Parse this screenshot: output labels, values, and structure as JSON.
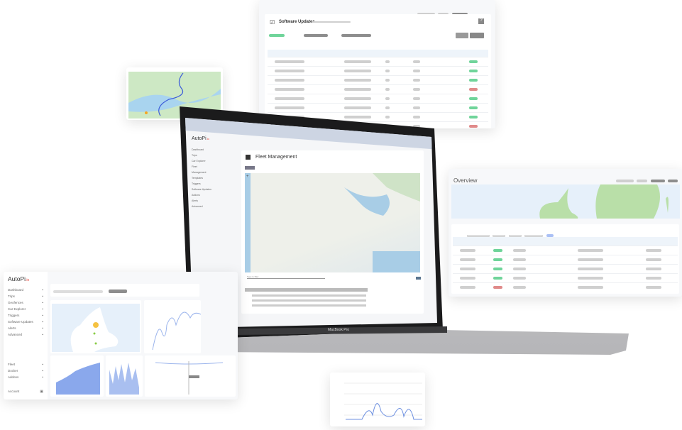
{
  "software_updates": {
    "title": "Software Updates",
    "icon": "checkbox-icon",
    "help_label": "?",
    "result_colors": [
      "#6fd49a",
      "#6fd49a",
      "#6fd49a",
      "#e08a8a",
      "#6fd49a",
      "#6fd49a",
      "#6fd49a",
      "#e08a8a"
    ]
  },
  "laptop": {
    "model_label": "MacBook Pro",
    "screen": {
      "logo": "AutoPi",
      "logo_suffix": ".io",
      "page_title": "Fleet Management",
      "search_placeholder": "Type to filter...",
      "sidebar": [
        {
          "label": "Dashboard"
        },
        {
          "label": "Trips"
        },
        {
          "label": "Car Explorer"
        },
        {
          "label": "Fleet"
        },
        {
          "label": "Management"
        },
        {
          "label": "Templates"
        },
        {
          "label": "Triggers"
        },
        {
          "label": "Software Updates"
        },
        {
          "label": "Addons"
        },
        {
          "label": "Alerts"
        },
        {
          "label": "Advanced"
        }
      ]
    }
  },
  "overview": {
    "title": "Overview",
    "status_colors": [
      "#6fd49a",
      "#6fd49a",
      "#6fd49a",
      "#6fd49a",
      "#e08a8a"
    ]
  },
  "dashboard": {
    "logo": "AutoPi",
    "logo_suffix": ".io",
    "sidebar": [
      {
        "label": "Dashboard",
        "icon": "dashboard-icon"
      },
      {
        "label": "Trips",
        "icon": "car-icon"
      },
      {
        "label": "Geofences",
        "icon": "geofence-icon"
      },
      {
        "label": "Car Explorer",
        "icon": "car-explorer-icon"
      },
      {
        "label": "Triggers",
        "icon": "trigger-icon"
      },
      {
        "label": "Software Updates",
        "icon": "update-icon"
      },
      {
        "label": "Alerts",
        "icon": "alert-icon"
      },
      {
        "label": "Advanced",
        "icon": "advanced-icon"
      }
    ],
    "sidebar_bottom": [
      {
        "label": "Fleet",
        "icon": "fleet-icon"
      },
      {
        "label": "Docker",
        "icon": "docker-icon"
      },
      {
        "label": "Addons",
        "icon": "addons-icon"
      }
    ],
    "account_label": "Account"
  },
  "accent_color": "#e8453c"
}
